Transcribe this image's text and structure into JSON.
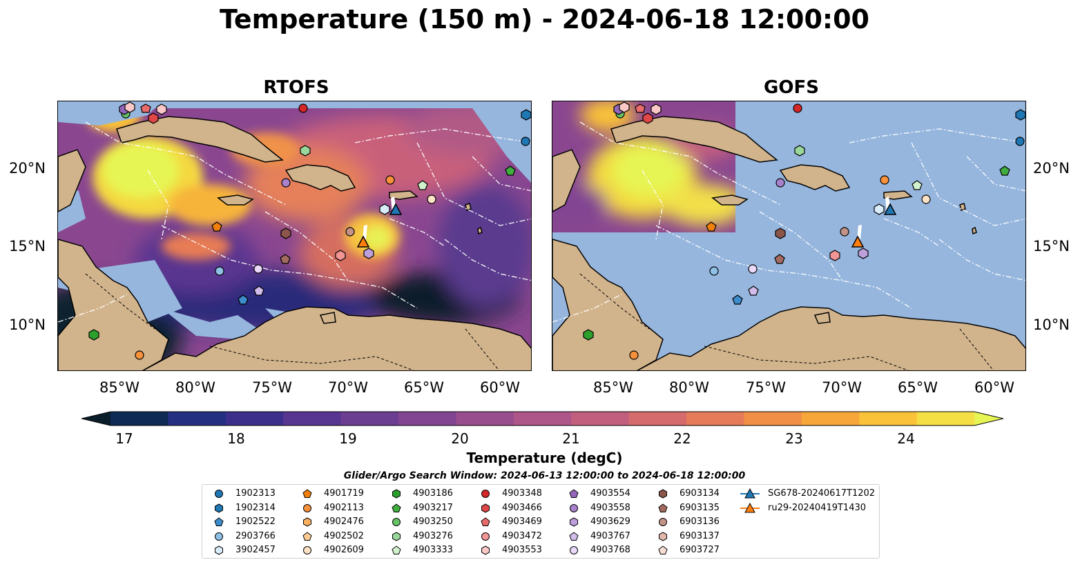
{
  "title": "Temperature (150 m) - 2024-06-18 12:00:00",
  "panels": [
    {
      "title": "RTOFS"
    },
    {
      "title": "GOFS"
    }
  ],
  "lat_labels": [
    "20°N",
    "15°N",
    "10°N"
  ],
  "lon_labels": [
    "85°W",
    "80°W",
    "75°W",
    "70°W",
    "65°W",
    "60°W"
  ],
  "colorbar": {
    "label": "Temperature (degC)",
    "ticks": [
      "17",
      "18",
      "19",
      "20",
      "21",
      "22",
      "23",
      "24"
    ],
    "colors": [
      "#0a1d2b",
      "#0f2a55",
      "#252f82",
      "#3c2f8c",
      "#573691",
      "#6c3e91",
      "#824592",
      "#984d8f",
      "#ae568a",
      "#c25f7f",
      "#d56b6d",
      "#e57b59",
      "#f08f45",
      "#f7a63a",
      "#f9c239",
      "#f4df45",
      "#e6f553"
    ]
  },
  "search_window": "Glider/Argo Search Window: 2024-06-13 12:00:00 to 2024-06-18 12:00:00",
  "legend": [
    {
      "label": "1902313",
      "marker": "circle",
      "color": "#1f77b4"
    },
    {
      "label": "1902314",
      "marker": "hexagon",
      "color": "#1f77b4"
    },
    {
      "label": "1902522",
      "marker": "pentagon",
      "color": "#3d8ccb"
    },
    {
      "label": "2903766",
      "marker": "circle",
      "color": "#8fc1e6"
    },
    {
      "label": "3902457",
      "marker": "hexagon",
      "color": "#d9ecfa"
    },
    {
      "label": "4901719",
      "marker": "pentagon",
      "color": "#f07f0e"
    },
    {
      "label": "4902113",
      "marker": "circle",
      "color": "#f7913a"
    },
    {
      "label": "4902476",
      "marker": "hexagon",
      "color": "#fbb060"
    },
    {
      "label": "4902502",
      "marker": "pentagon",
      "color": "#fdcc94"
    },
    {
      "label": "4902609",
      "marker": "circle",
      "color": "#fde3c6"
    },
    {
      "label": "4903186",
      "marker": "hexagon",
      "color": "#2ca02c"
    },
    {
      "label": "4903217",
      "marker": "pentagon",
      "color": "#3fae3f"
    },
    {
      "label": "4903250",
      "marker": "circle",
      "color": "#66c266"
    },
    {
      "label": "4903276",
      "marker": "hexagon",
      "color": "#9ad79a"
    },
    {
      "label": "4903333",
      "marker": "pentagon",
      "color": "#d2f2cd"
    },
    {
      "label": "4903348",
      "marker": "circle",
      "color": "#d62728"
    },
    {
      "label": "4903466",
      "marker": "hexagon",
      "color": "#df4747"
    },
    {
      "label": "4903469",
      "marker": "pentagon",
      "color": "#e86a6a"
    },
    {
      "label": "4903472",
      "marker": "circle",
      "color": "#f29595"
    },
    {
      "label": "4903553",
      "marker": "hexagon",
      "color": "#fbc7c7"
    },
    {
      "label": "4903554",
      "marker": "pentagon",
      "color": "#9467bd"
    },
    {
      "label": "4903558",
      "marker": "circle",
      "color": "#a883cc"
    },
    {
      "label": "4903629",
      "marker": "hexagon",
      "color": "#bd9fdb"
    },
    {
      "label": "4903767",
      "marker": "pentagon",
      "color": "#d2bdea"
    },
    {
      "label": "4903768",
      "marker": "circle",
      "color": "#ead9f8"
    },
    {
      "label": "6903134",
      "marker": "hexagon",
      "color": "#8c564b"
    },
    {
      "label": "6903135",
      "marker": "pentagon",
      "color": "#a36b5f"
    },
    {
      "label": "6903136",
      "marker": "circle",
      "color": "#c49387"
    },
    {
      "label": "6903137",
      "marker": "hexagon",
      "color": "#e2b8ac"
    },
    {
      "label": "6903727",
      "marker": "pentagon",
      "color": "#f8ddd3"
    },
    {
      "label": "SG678-20240617T1202",
      "marker": "triangle-line",
      "color": "#1f77b4"
    },
    {
      "label": "ru29-20240419T1430",
      "marker": "triangle-line",
      "color": "#ff7f0e"
    }
  ]
}
